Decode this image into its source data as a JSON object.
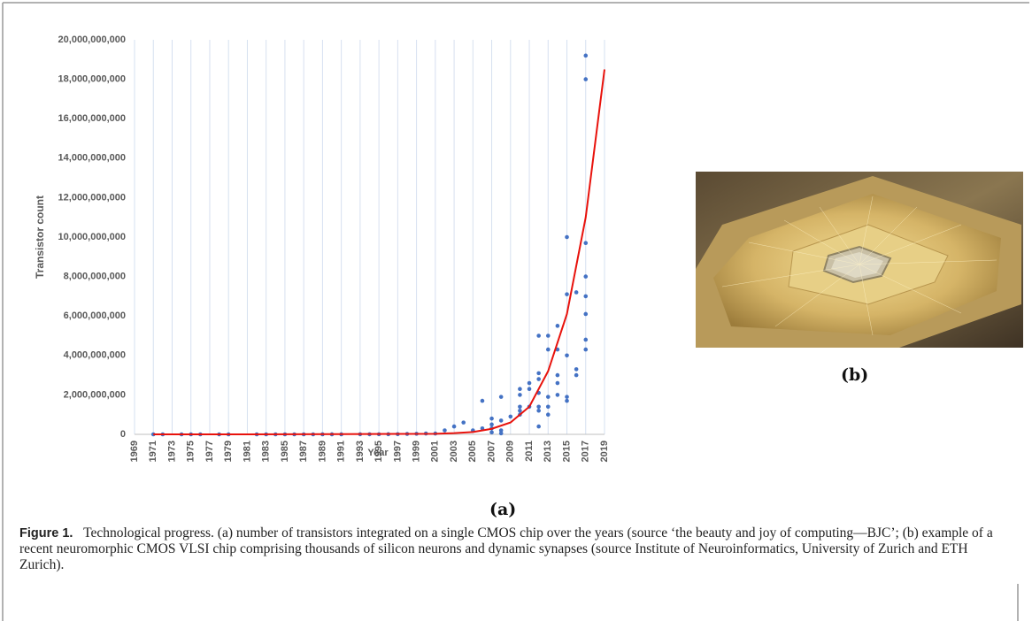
{
  "chart_data": {
    "type": "scatter",
    "y_label": "Transistor count",
    "x_label": "Year",
    "xlim": [
      1969,
      2019
    ],
    "xticks": [
      1969,
      1971,
      1973,
      1975,
      1977,
      1979,
      1981,
      1983,
      1985,
      1987,
      1989,
      1991,
      1993,
      1995,
      1997,
      1999,
      2001,
      2003,
      2005,
      2007,
      2009,
      2011,
      2013,
      2015,
      2017,
      2019
    ],
    "ylim": [
      0,
      20000000000
    ],
    "yticks": [
      {
        "value": 0,
        "label": "0"
      },
      {
        "value": 2000000000,
        "label": "2,000,000,000"
      },
      {
        "value": 4000000000,
        "label": "4,000,000,000"
      },
      {
        "value": 6000000000,
        "label": "6,000,000,000"
      },
      {
        "value": 8000000000,
        "label": "8,000,000,000"
      },
      {
        "value": 10000000000,
        "label": "10,000,000,000"
      },
      {
        "value": 12000000000,
        "label": "12,000,000,000"
      },
      {
        "value": 14000000000,
        "label": "14,000,000,000"
      },
      {
        "value": 16000000000,
        "label": "16,000,000,000"
      },
      {
        "value": 18000000000,
        "label": "18,000,000,000"
      },
      {
        "value": 20000000000,
        "label": "20,000,000,000"
      }
    ],
    "grid": "x",
    "series": [
      {
        "color": "#4472c4",
        "x": [
          1971,
          1972,
          1974,
          1975,
          1976,
          1978,
          1979,
          1982,
          1983,
          1984,
          1985,
          1986,
          1987,
          1988,
          1989,
          1990,
          1991,
          1993,
          1994,
          1995,
          1996,
          1997,
          1998,
          1999,
          2000,
          2001,
          2002,
          2003,
          2004,
          2005,
          2006,
          2006,
          2007,
          2007,
          2007,
          2007,
          2008,
          2008,
          2008,
          2008,
          2009,
          2010,
          2010,
          2010,
          2010,
          2010,
          2011,
          2011,
          2011,
          2012,
          2012,
          2012,
          2012,
          2012,
          2012,
          2012,
          2013,
          2013,
          2013,
          2013,
          2013,
          2014,
          2014,
          2014,
          2014,
          2014,
          2015,
          2015,
          2015,
          2015,
          2015,
          2016,
          2016,
          2016,
          2017,
          2017,
          2017,
          2017,
          2017,
          2017,
          2017,
          2017
        ],
        "values": [
          2300,
          3500,
          6000,
          4500,
          8500,
          29000,
          68000,
          134000,
          150000,
          190000,
          275000,
          300000,
          450000,
          500000,
          1000000,
          1200000,
          1400000,
          3100000,
          5000000,
          5500000,
          7500000,
          9500000,
          21000000,
          28000000,
          42000000,
          40000000,
          200000000,
          400000000,
          600000000,
          200000000,
          1700000000,
          300000000,
          800000000,
          500000000,
          300000000,
          100000000,
          1900000000,
          700000000,
          200000000,
          50000000,
          900000000,
          2300000000,
          2000000000,
          1400000000,
          1200000000,
          1000000000,
          2600000000,
          2300000000,
          1400000000,
          5000000000,
          3100000000,
          2800000000,
          2100000000,
          1400000000,
          1200000000,
          400000000,
          5000000000,
          4300000000,
          1900000000,
          1400000000,
          1000000000,
          5500000000,
          4300000000,
          3000000000,
          2600000000,
          2000000000,
          10000000000,
          7100000000,
          4000000000,
          1900000000,
          1700000000,
          7200000000,
          3300000000,
          3000000000,
          19200000000,
          18000000000,
          9700000000,
          8000000000,
          7000000000,
          6100000000,
          4800000000,
          4300000000
        ]
      },
      {
        "type": "line",
        "color": "#e8120c",
        "x": [
          1971,
          1981,
          1991,
          1997,
          2001,
          2003,
          2005,
          2007,
          2009,
          2011,
          2013,
          2015,
          2017,
          2019
        ],
        "values": [
          0,
          2000000,
          10000000,
          20000000,
          30000000,
          60000000,
          120000000,
          280000000,
          600000000,
          1400000000,
          3200000000,
          6100000000,
          11000000000,
          18500000000
        ]
      }
    ]
  },
  "panels": {
    "a": "(a)",
    "b": "(b)"
  },
  "caption": {
    "label": "Figure 1.",
    "text": "Technological progress. (a) number of transistors integrated on a single CMOS chip over the years (source ‘the beauty and joy of computing—BJC’; (b) example of a recent neuromorphic CMOS VLSI chip comprising thousands of silicon neurons and dynamic synapses (source Institute of Neuroinformatics, University of Zurich and ETH Zurich)."
  }
}
